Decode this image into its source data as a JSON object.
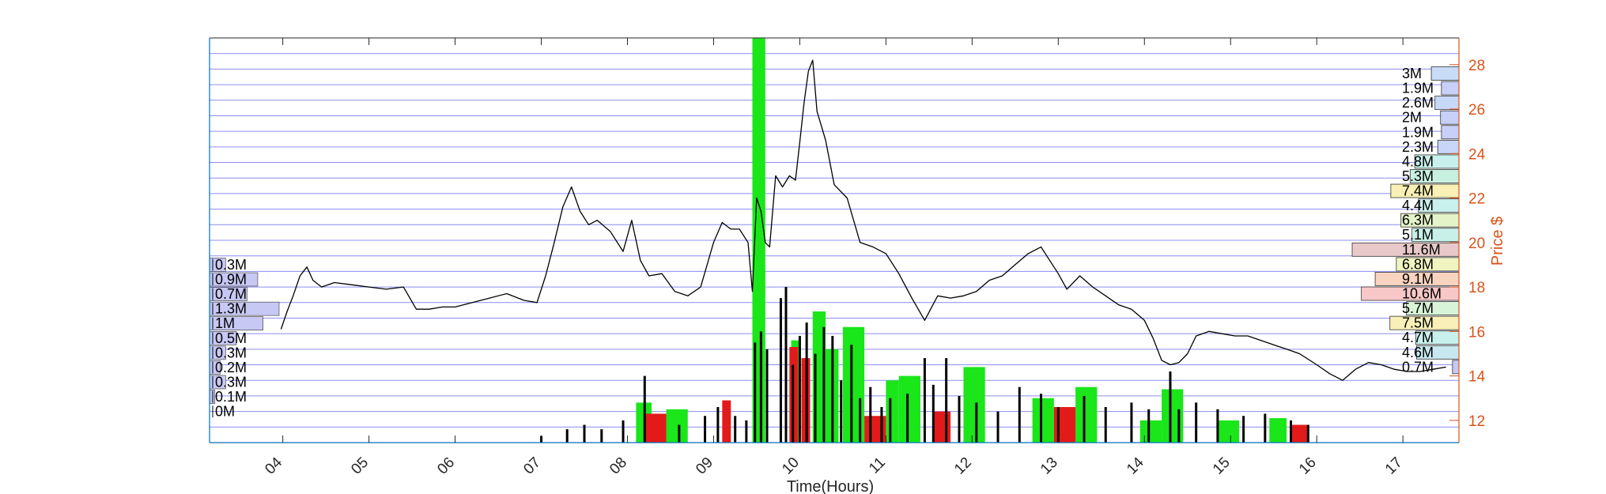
{
  "chart_data": {
    "type": "line",
    "title": "",
    "xlabel": "Time(Hours)",
    "ylabel": "Price $",
    "x_ticks": [
      "04",
      "05",
      "06",
      "07",
      "08",
      "09",
      "10",
      "11",
      "12",
      "13",
      "14",
      "15",
      "16",
      "17"
    ],
    "y_ticks": [
      12,
      14,
      16,
      18,
      20,
      22,
      24,
      26,
      28
    ],
    "xlim": [
      3.15,
      17.65
    ],
    "ylim": [
      11.0,
      29.2
    ],
    "grid": "horizontal",
    "price_series": {
      "name": "",
      "color": "#000000",
      "x": [
        3.98,
        4.05,
        4.12,
        4.2,
        4.28,
        4.35,
        4.45,
        4.6,
        4.8,
        5.0,
        5.2,
        5.4,
        5.55,
        5.7,
        5.85,
        6.0,
        6.2,
        6.4,
        6.6,
        6.8,
        6.95,
        7.05,
        7.15,
        7.25,
        7.35,
        7.45,
        7.55,
        7.65,
        7.8,
        7.95,
        8.05,
        8.15,
        8.25,
        8.4,
        8.55,
        8.7,
        8.85,
        9.0,
        9.1,
        9.2,
        9.3,
        9.4,
        9.45,
        9.5,
        9.55,
        9.6,
        9.65,
        9.72,
        9.8,
        9.88,
        9.95,
        10.0,
        10.05,
        10.1,
        10.15,
        10.2,
        10.3,
        10.4,
        10.55,
        10.7,
        10.85,
        11.0,
        11.15,
        11.3,
        11.45,
        11.6,
        11.75,
        11.9,
        12.05,
        12.2,
        12.35,
        12.5,
        12.65,
        12.8,
        12.9,
        13.0,
        13.1,
        13.25,
        13.4,
        13.55,
        13.7,
        13.85,
        14.0,
        14.1,
        14.2,
        14.3,
        14.4,
        14.5,
        14.6,
        14.75,
        14.9,
        15.05,
        15.2,
        15.35,
        15.5,
        15.65,
        15.8,
        16.0,
        16.15,
        16.3,
        16.45,
        16.6,
        16.75,
        16.9,
        17.05,
        17.2,
        17.35,
        17.5
      ],
      "y": [
        16.1,
        16.9,
        17.6,
        18.5,
        18.9,
        18.3,
        18.0,
        18.2,
        18.1,
        18.0,
        17.9,
        18.0,
        17.0,
        17.0,
        17.1,
        17.1,
        17.3,
        17.5,
        17.7,
        17.4,
        17.3,
        18.5,
        20.0,
        21.6,
        22.5,
        21.4,
        20.8,
        21.0,
        20.5,
        19.6,
        21.0,
        19.2,
        18.5,
        18.6,
        17.8,
        17.6,
        18.0,
        20.0,
        20.9,
        20.6,
        20.6,
        20.0,
        17.8,
        22.0,
        21.4,
        20.0,
        19.8,
        23.0,
        22.5,
        23.0,
        22.8,
        24.5,
        26.3,
        27.7,
        28.2,
        25.9,
        24.6,
        22.6,
        22.0,
        20.0,
        19.8,
        19.5,
        18.6,
        17.5,
        16.5,
        17.6,
        17.5,
        17.6,
        17.8,
        18.3,
        18.5,
        19.0,
        19.5,
        19.8,
        19.2,
        18.6,
        17.9,
        18.5,
        18.0,
        17.6,
        17.2,
        17.0,
        16.5,
        15.7,
        14.7,
        14.5,
        14.6,
        15.0,
        15.8,
        16.0,
        15.9,
        15.8,
        15.8,
        15.6,
        15.4,
        15.2,
        15.0,
        14.5,
        14.1,
        13.8,
        14.3,
        14.6,
        14.5,
        14.3,
        14.2,
        14.2,
        14.3,
        14.4
      ]
    },
    "volume_bars": {
      "green_color": "#1AE61A",
      "red_color": "#E31A1A",
      "green": [
        [
          8.1,
          8.28,
          12.8
        ],
        [
          8.45,
          8.7,
          12.5
        ],
        [
          9.45,
          9.6,
          29.2
        ],
        [
          9.9,
          10.0,
          15.6
        ],
        [
          10.15,
          10.3,
          16.9
        ],
        [
          10.25,
          10.45,
          15.2
        ],
        [
          10.5,
          10.75,
          16.2
        ],
        [
          11.0,
          11.15,
          13.8
        ],
        [
          11.15,
          11.4,
          14.0
        ],
        [
          11.9,
          12.15,
          14.4
        ],
        [
          12.7,
          12.95,
          13.0
        ],
        [
          13.2,
          13.45,
          13.5
        ],
        [
          13.95,
          14.2,
          12.0
        ],
        [
          14.2,
          14.45,
          13.4
        ],
        [
          14.85,
          15.1,
          12.0
        ],
        [
          15.45,
          15.65,
          12.1
        ]
      ],
      "red": [
        [
          8.2,
          8.45,
          12.3
        ],
        [
          9.1,
          9.2,
          12.9
        ],
        [
          9.88,
          9.98,
          15.3
        ],
        [
          10.02,
          10.12,
          14.8
        ],
        [
          10.75,
          11.0,
          12.2
        ],
        [
          11.55,
          11.75,
          12.4
        ],
        [
          12.95,
          13.2,
          12.6
        ],
        [
          15.7,
          15.9,
          11.8
        ]
      ],
      "black": [
        [
          7.0,
          11.3
        ],
        [
          7.3,
          11.6
        ],
        [
          7.5,
          11.8
        ],
        [
          7.7,
          11.6
        ],
        [
          7.95,
          12.0
        ],
        [
          8.2,
          14.0
        ],
        [
          8.6,
          11.8
        ],
        [
          8.9,
          12.2
        ],
        [
          9.05,
          12.6
        ],
        [
          9.25,
          12.2
        ],
        [
          9.38,
          12.0
        ],
        [
          9.48,
          15.5
        ],
        [
          9.55,
          16.0
        ],
        [
          9.62,
          15.2
        ],
        [
          9.78,
          17.5
        ],
        [
          9.84,
          18.0
        ],
        [
          9.92,
          14.5
        ],
        [
          10.0,
          15.8
        ],
        [
          10.08,
          16.4
        ],
        [
          10.18,
          15.0
        ],
        [
          10.28,
          16.2
        ],
        [
          10.38,
          15.8
        ],
        [
          10.48,
          13.8
        ],
        [
          10.6,
          15.4
        ],
        [
          10.7,
          13.0
        ],
        [
          10.82,
          13.5
        ],
        [
          10.95,
          12.6
        ],
        [
          11.05,
          13.0
        ],
        [
          11.25,
          13.2
        ],
        [
          11.45,
          14.8
        ],
        [
          11.55,
          13.6
        ],
        [
          11.7,
          14.8
        ],
        [
          11.85,
          13.1
        ],
        [
          12.05,
          12.8
        ],
        [
          12.3,
          12.4
        ],
        [
          12.55,
          13.5
        ],
        [
          12.8,
          13.2
        ],
        [
          13.0,
          12.6
        ],
        [
          13.3,
          13.1
        ],
        [
          13.55,
          12.6
        ],
        [
          13.85,
          12.8
        ],
        [
          14.05,
          12.5
        ],
        [
          14.3,
          14.2
        ],
        [
          14.4,
          12.5
        ],
        [
          14.6,
          12.8
        ],
        [
          14.85,
          12.5
        ],
        [
          15.15,
          12.2
        ],
        [
          15.4,
          12.3
        ],
        [
          15.7,
          12.0
        ],
        [
          15.9,
          11.8
        ]
      ]
    },
    "volume_profile_left": {
      "labels": [
        "0.3M",
        "0.9M",
        "0.7M",
        "1.3M",
        "1M",
        "0.5M",
        "0.3M",
        "0.2M",
        "0.3M",
        "0.1M",
        "0M"
      ],
      "values": [
        0.3,
        0.9,
        0.7,
        1.3,
        1.0,
        0.5,
        0.3,
        0.2,
        0.3,
        0.1,
        0
      ],
      "prices": [
        19.0,
        18.34,
        17.68,
        17.02,
        16.36,
        15.7,
        15.04,
        14.38,
        13.72,
        13.06,
        12.4
      ]
    },
    "volume_profile_right": {
      "labels": [
        "3M",
        "1.9M",
        "2.6M",
        "2M",
        "1.9M",
        "2.3M",
        "4.8M",
        "5.3M",
        "7.4M",
        "4.4M",
        "6.3M",
        "5.1M",
        "11.6M",
        "6.8M",
        "9.1M",
        "10.6M",
        "5.7M",
        "7.5M",
        "4.7M",
        "4.6M",
        "0.7M"
      ],
      "values": [
        3.0,
        1.9,
        2.6,
        2.0,
        1.9,
        2.3,
        4.8,
        5.3,
        7.4,
        4.4,
        6.3,
        5.1,
        11.6,
        6.8,
        9.1,
        10.6,
        5.7,
        7.5,
        4.7,
        4.6,
        0.7
      ],
      "prices": [
        27.6,
        26.94,
        26.28,
        25.62,
        24.96,
        24.3,
        23.64,
        22.98,
        22.32,
        21.66,
        21.0,
        20.34,
        19.68,
        19.02,
        18.36,
        17.7,
        17.04,
        16.38,
        15.72,
        15.06,
        14.4
      ],
      "colors": [
        "#C8DCF8",
        "#C8D0F8",
        "#C8D8F8",
        "#C8D0F8",
        "#C8D0F8",
        "#C8D4F8",
        "#C8F0EC",
        "#C8F0E0",
        "#F8F0B4",
        "#C8F0EC",
        "#E4F4C8",
        "#C8F0E8",
        "#E8C8C8",
        "#F0F4C0",
        "#F8D4C0",
        "#F8C8C8",
        "#D8F4D8",
        "#F8F0B8",
        "#C8F0EC",
        "#C8E8F0",
        "#C8C8F4"
      ]
    }
  }
}
